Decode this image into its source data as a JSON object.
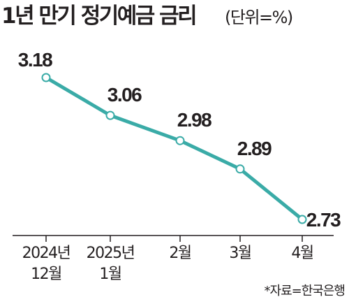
{
  "colors": {
    "line": "#3aaba7",
    "marker_fill": "#ffffff",
    "axis": "#231f20",
    "text": "#231f20"
  },
  "chart_data": {
    "type": "line",
    "title": "1년 만기 정기예금 금리",
    "unit_note": "(단위=%)",
    "categories": [
      [
        "2024년",
        "12월"
      ],
      [
        "2025년",
        "1월"
      ],
      [
        "2월"
      ],
      [
        "3월"
      ],
      [
        "4월"
      ]
    ],
    "values": [
      3.18,
      3.06,
      2.98,
      2.89,
      2.73
    ],
    "data_labels": [
      "3.18",
      "3.06",
      "2.98",
      "2.89",
      "2.73"
    ],
    "ylim": [
      2.6,
      3.3
    ],
    "grid": false,
    "source": "*자료=한국은행"
  }
}
